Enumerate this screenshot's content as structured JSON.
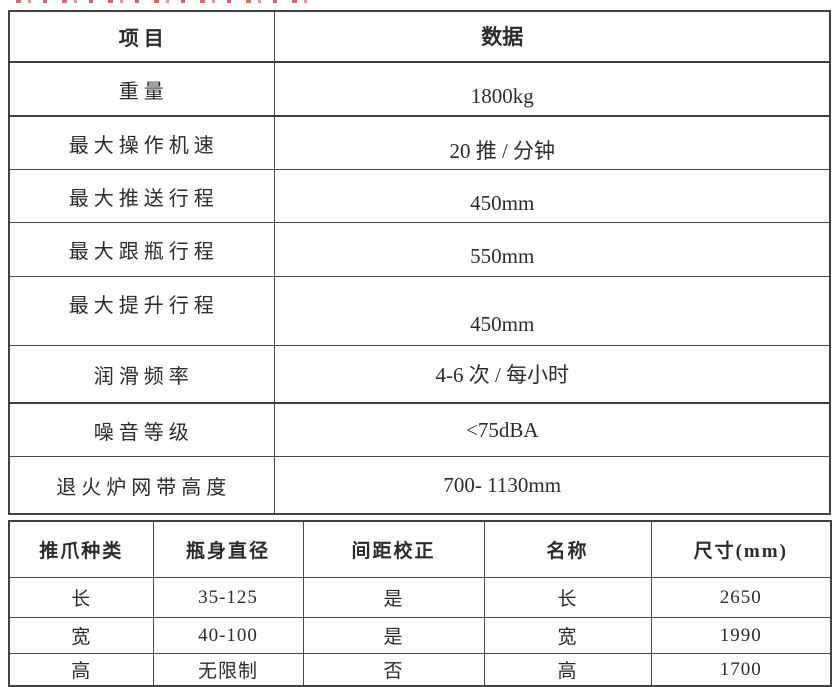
{
  "colors": {
    "background": "#ffffff",
    "border": "#4a4a4a",
    "text": "#2b2b2b",
    "accent_red": "#d65c66"
  },
  "spec_table": {
    "headers": {
      "item": "项目",
      "data": "数据"
    },
    "rows": [
      {
        "label": "重量",
        "value": "1800kg"
      },
      {
        "label": "最大操作机速",
        "value": "20 推 / 分钟"
      },
      {
        "label": "最大推送行程",
        "value": "450mm"
      },
      {
        "label": "最大跟瓶行程",
        "value": "550mm"
      },
      {
        "label": "最大提升行程",
        "value": "450mm"
      },
      {
        "label": "润滑频率",
        "value": "4-6 次 / 每小时"
      },
      {
        "label": "噪音等级",
        "value": "<75dBA"
      },
      {
        "label": "退火炉网带高度",
        "value": "700- 1130mm"
      }
    ]
  },
  "claw_table": {
    "headers": [
      "推爪种类",
      "瓶身直径",
      "间距校正",
      "名称",
      "尺寸(mm)"
    ],
    "rows": [
      [
        "长",
        "35-125",
        "是",
        "长",
        "2650"
      ],
      [
        "宽",
        "40-100",
        "是",
        "宽",
        "1990"
      ],
      [
        "高",
        "无限制",
        "否",
        "高",
        "1700"
      ]
    ]
  }
}
